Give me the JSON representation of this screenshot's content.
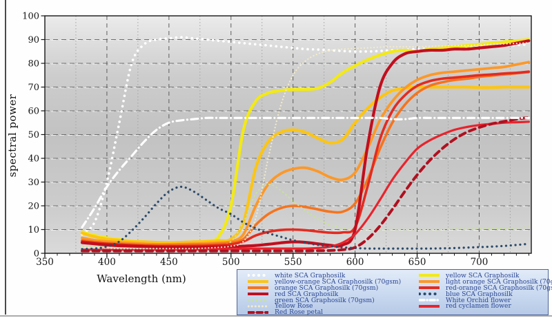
{
  "figure": {
    "y_axis_label": "spectral power",
    "x_axis_label": "Wavelength (nm)"
  },
  "chart_data": {
    "type": "line",
    "title": "",
    "xlabel": "Wavelength (nm)",
    "ylabel": "spectral power",
    "xlim": [
      350,
      742
    ],
    "ylim": [
      0,
      100
    ],
    "x_ticks": [
      350,
      400,
      450,
      500,
      550,
      600,
      650,
      700
    ],
    "y_ticks": [
      0,
      10,
      20,
      30,
      40,
      50,
      60,
      70,
      80,
      90,
      100
    ],
    "x_minor_tick_step": 10,
    "grid": {
      "h_step": 10,
      "v_major_step": 50,
      "v_minor_step": 25,
      "h_color": "#6b6b6b",
      "v_major_color": "#5d5d5d",
      "v_minor_color": "#a2a2a2"
    },
    "plot_bg": {
      "top": "#ebebeb",
      "upper_mid": "#cdcdcd",
      "mid": "#c2c2c2",
      "lower_mid": "#cccccc",
      "bottom": "#dadada"
    },
    "x": [
      380,
      390,
      400,
      410,
      420,
      430,
      440,
      450,
      460,
      470,
      480,
      490,
      500,
      510,
      520,
      530,
      540,
      550,
      560,
      570,
      580,
      590,
      600,
      610,
      620,
      630,
      640,
      650,
      660,
      670,
      680,
      690,
      700,
      710,
      720,
      730,
      740
    ],
    "draw_order": [
      "white_sca",
      "yellow_sca",
      "yellow_orange",
      "light_orange",
      "orange",
      "green_sca",
      "red_orange",
      "red_sca",
      "cyclamen",
      "red_rose",
      "yellow_rose",
      "white_orchid",
      "blue_sca"
    ],
    "series": [
      {
        "id": "white_sca",
        "name": "white SCA Graphosilk",
        "color": "#ffffff",
        "style": "dot",
        "width": 3.6,
        "values": [
          8,
          13,
          30,
          55,
          80,
          88,
          90,
          90.5,
          91,
          90.5,
          90,
          89.5,
          89,
          88.5,
          88,
          87.5,
          87,
          86.5,
          86,
          85.8,
          85.5,
          85.2,
          85,
          85,
          85.2,
          85.5,
          85.7,
          86,
          86.2,
          86.5,
          86.7,
          87,
          87,
          87.2,
          87.5,
          87.7,
          88
        ]
      },
      {
        "id": "yellow_sca",
        "name": "yellow SCA Graphosilk",
        "color": "#f3ea12",
        "style": "solid",
        "width": 4.2,
        "values": [
          9,
          7.5,
          6.5,
          5.8,
          5.2,
          4.8,
          4.5,
          4.5,
          4.6,
          4.8,
          5.2,
          7,
          20,
          52,
          64,
          67.5,
          68.5,
          69,
          69,
          69.5,
          72,
          76,
          79,
          81.5,
          83.5,
          85,
          85.5,
          85,
          86,
          86.5,
          87,
          87.5,
          88,
          88.5,
          89,
          89.5,
          90
        ]
      },
      {
        "id": "yellow_orange",
        "name": "yellow-orange SCA Graphosilk (70gsm)",
        "color": "#fcc514",
        "style": "solid",
        "width": 4.2,
        "values": [
          8.5,
          7,
          6,
          5.5,
          5,
          4.8,
          4.6,
          4.5,
          4.6,
          4.8,
          5,
          5.3,
          6,
          13,
          36,
          47,
          51,
          52,
          51,
          48.5,
          46.5,
          48,
          55,
          61,
          65.5,
          68.5,
          69.5,
          70,
          70,
          70,
          70,
          70,
          69.8,
          69.8,
          70,
          70,
          70
        ]
      },
      {
        "id": "light_orange",
        "name": "light orange SCA Graphosilk (70gsm)",
        "color": "#fc9828",
        "style": "solid",
        "width": 3.8,
        "values": [
          6.5,
          5.5,
          5,
          4.6,
          4.3,
          4,
          3.8,
          3.8,
          3.9,
          4,
          4.2,
          4.5,
          5,
          8,
          20,
          29,
          33.5,
          35.5,
          36,
          34.5,
          32,
          31,
          34,
          44,
          56,
          64,
          69.5,
          73,
          75,
          76,
          76.5,
          77,
          77.5,
          78,
          78.5,
          79.5,
          80.5
        ]
      },
      {
        "id": "orange",
        "name": "orange SCA Graphosilk (70gsm)",
        "color": "#f5741e",
        "style": "solid",
        "width": 3.6,
        "values": [
          5.5,
          4.8,
          4.3,
          4,
          3.8,
          3.6,
          3.5,
          3.5,
          3.6,
          3.7,
          3.8,
          4,
          4.5,
          6,
          12,
          16.5,
          19,
          20,
          19.5,
          18.5,
          17.5,
          17.5,
          21,
          31,
          44,
          55,
          62.5,
          67.5,
          70.5,
          72,
          73,
          73.5,
          74.3,
          74.8,
          75.3,
          75.8,
          76.3
        ]
      },
      {
        "id": "red_orange",
        "name": "red-orange SCA Graphosilk (70gsm)",
        "color": "#e32b20",
        "style": "solid",
        "width": 3.6,
        "values": [
          5,
          4.4,
          4,
          3.7,
          3.4,
          3.2,
          3,
          3,
          3,
          3.1,
          3.2,
          3.4,
          3.8,
          5,
          7.5,
          9,
          9.8,
          10,
          9.7,
          9.2,
          8.7,
          8.8,
          11,
          28,
          48,
          60,
          66.5,
          70.5,
          72.5,
          73.5,
          74,
          74.5,
          75,
          75.3,
          75.7,
          76,
          76.5
        ]
      },
      {
        "id": "red_sca",
        "name": "red SCA Graphosilk",
        "color": "#c10e1e",
        "style": "solid",
        "width": 4.2,
        "values": [
          4.5,
          4,
          3.5,
          3.2,
          3,
          2.8,
          2.6,
          2.5,
          2.5,
          2.5,
          2.6,
          2.7,
          2.8,
          3,
          3.3,
          3.8,
          4.4,
          4.8,
          4.6,
          4,
          3.4,
          3.5,
          10,
          45,
          70,
          80,
          84,
          85,
          85.5,
          85.5,
          86,
          86,
          86.5,
          87,
          87.5,
          88.5,
          89.5
        ]
      },
      {
        "id": "blue_sca",
        "name": "blue SCA Graphosilk",
        "color": "#2b4a6b",
        "style": "dot",
        "width": 3.2,
        "values": [
          1.8,
          2,
          2.8,
          5,
          9.5,
          15,
          21,
          26,
          28,
          26,
          22.5,
          19,
          16.5,
          13,
          10.5,
          8.5,
          7,
          5.5,
          4.5,
          3.5,
          3,
          2.5,
          2.2,
          2,
          2,
          2,
          2,
          2,
          2,
          2.1,
          2.2,
          2.4,
          2.6,
          2.8,
          3.1,
          3.5,
          4
        ]
      },
      {
        "id": "green_sca",
        "name": "green SCA Graphosilk (70gsm)",
        "color": "#c8e494",
        "style": "fine-dash",
        "width": 1.8,
        "values": [
          3,
          2.8,
          2.6,
          2.5,
          2.5,
          2.5,
          2.5,
          2.6,
          2.7,
          2.8,
          3,
          3.5,
          5,
          13,
          25,
          29,
          26.5,
          22,
          18,
          14.5,
          12,
          10.5,
          10,
          10,
          10,
          10,
          10,
          10,
          10,
          10,
          10.2,
          10.2,
          10.3,
          10.4,
          10.5,
          10.7,
          11
        ]
      },
      {
        "id": "white_orchid",
        "name": "White Orchid flower",
        "color": "#ffffff",
        "style": "dashdot",
        "width": 3.2,
        "values": [
          11,
          19,
          28,
          35,
          41,
          47,
          52,
          55,
          56,
          56.5,
          57,
          57,
          57,
          57,
          57,
          57,
          57,
          57,
          57,
          57,
          57,
          57,
          57,
          57,
          57,
          56.5,
          56.5,
          57,
          57,
          57,
          57,
          57,
          57,
          57,
          57,
          57,
          57
        ]
      },
      {
        "id": "yellow_rose",
        "name": "Yellow Rose",
        "color": "#f3eccb",
        "style": "fine-dot",
        "width": 2.2,
        "values": [
          2.5,
          2.3,
          2.2,
          2,
          2,
          2,
          2,
          2,
          2,
          2,
          2.2,
          2.5,
          3,
          5,
          15,
          40,
          62,
          75,
          81,
          84,
          85.5,
          86,
          86.3,
          86.5,
          86.8,
          87,
          87,
          87,
          87.2,
          87.3,
          87.5,
          87.5,
          87.7,
          88,
          88.2,
          88.4,
          88.6
        ]
      },
      {
        "id": "cyclamen",
        "name": "red cyclamen flower",
        "color": "#e8232c",
        "style": "solid",
        "width": 3.2,
        "values": [
          1.5,
          1.5,
          1.5,
          1.5,
          1.5,
          1.5,
          1.5,
          1.5,
          1.6,
          1.6,
          1.7,
          1.8,
          1.8,
          1.9,
          2,
          2,
          2,
          2,
          2,
          2.2,
          2.8,
          4.5,
          8,
          14.5,
          22.5,
          31,
          38,
          44,
          47.5,
          50,
          52,
          53.2,
          54,
          54.5,
          55,
          55.2,
          55.4
        ]
      },
      {
        "id": "red_rose",
        "name": "Red Rose petal",
        "color": "#b01020",
        "style": "dash",
        "width": 4,
        "values": [
          1,
          1,
          1,
          1,
          1,
          1,
          1,
          1,
          1,
          1,
          1,
          1,
          1,
          1,
          1,
          1,
          1,
          1,
          1,
          1.1,
          1.2,
          1.5,
          2.5,
          6,
          11.5,
          18.5,
          26,
          33,
          39,
          44,
          48,
          51,
          53,
          54.5,
          55.5,
          56.5,
          57.2
        ]
      }
    ]
  },
  "legend": {
    "columns": [
      [
        "white_sca",
        "yellow_orange",
        "orange",
        "red_sca",
        "green_sca",
        "yellow_rose",
        "red_rose"
      ],
      [
        "yellow_sca",
        "light_orange",
        "red_orange",
        "blue_sca",
        "white_orchid",
        "cyclamen"
      ]
    ],
    "text_color": "#2b4694"
  }
}
